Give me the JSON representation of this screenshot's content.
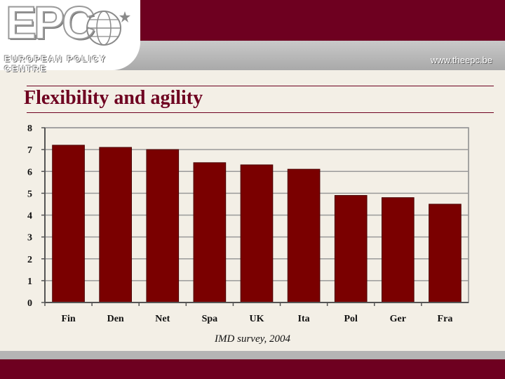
{
  "header": {
    "logo_text": "EPC",
    "logo_subtitle": "EUROPEAN POLICY CENTRE",
    "website": "www.theepc.be"
  },
  "slide": {
    "title": "Flexibility and agility",
    "caption": "IMD survey, 2004"
  },
  "colors": {
    "brand": "#6e0020",
    "bar": "#7a0000",
    "grid": "#9a9a9a"
  },
  "chart_data": {
    "type": "bar",
    "categories": [
      "Fin",
      "Den",
      "Net",
      "Spa",
      "UK",
      "Ita",
      "Pol",
      "Ger",
      "Fra"
    ],
    "values": [
      7.2,
      7.1,
      7.0,
      6.4,
      6.3,
      6.1,
      4.9,
      4.8,
      4.5
    ],
    "title": "",
    "xlabel": "",
    "ylabel": "",
    "ylim": [
      0,
      8
    ],
    "yticks": [
      0,
      1,
      2,
      3,
      4,
      5,
      6,
      7,
      8
    ],
    "grid": true
  }
}
